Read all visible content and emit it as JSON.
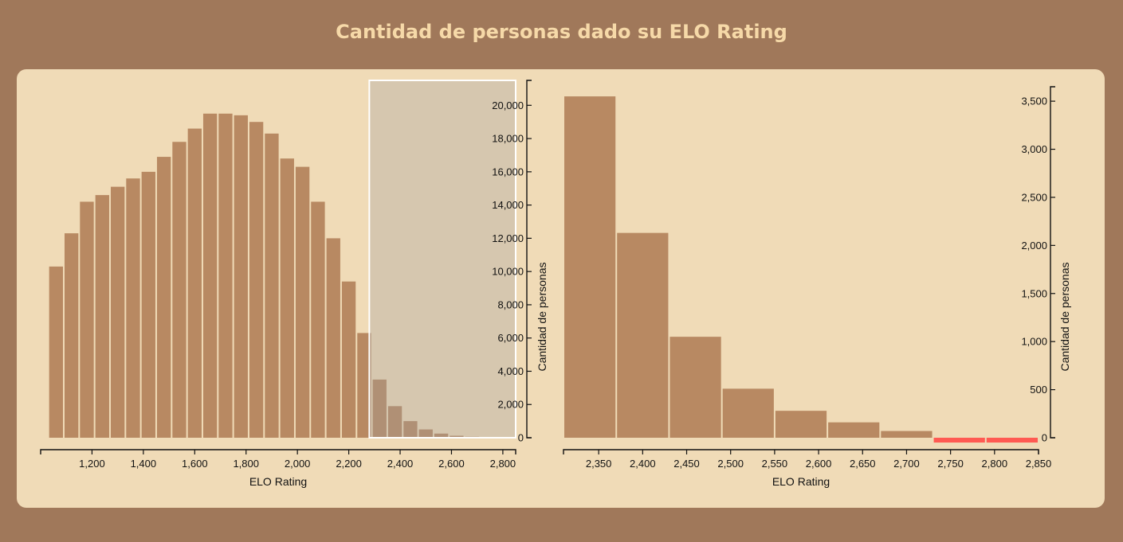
{
  "title": "Cantidad de personas dado su ELO Rating",
  "colors": {
    "background": "#a0785a",
    "panel": "#f0dbb7",
    "bar": "#b88962",
    "bar_highlight": "#ff5a52",
    "brush": "#a0a0a0",
    "title": "#f6d9a8"
  },
  "chart_data": [
    {
      "type": "bar",
      "chart": "histogram-overview",
      "xlabel": "ELO Rating",
      "ylabel": "Cantidad de personas",
      "x_ticks": [
        "1,200",
        "1,400",
        "1,600",
        "1,800",
        "2,000",
        "2,200",
        "2,400",
        "2,600",
        "2,800"
      ],
      "y_ticks": [
        "0",
        "2,000",
        "4,000",
        "6,000",
        "8,000",
        "10,000",
        "12,000",
        "14,000",
        "16,000",
        "18,000",
        "20,000"
      ],
      "xlim": [
        1000,
        2850
      ],
      "ylim": [
        0,
        21500
      ],
      "bin_width": 60,
      "bins_start": [
        1030,
        1090,
        1150,
        1210,
        1270,
        1330,
        1390,
        1450,
        1510,
        1570,
        1630,
        1690,
        1750,
        1810,
        1870,
        1930,
        1990,
        2050,
        2110,
        2170,
        2230,
        2290,
        2350,
        2410,
        2470,
        2530,
        2590,
        2650,
        2710,
        2770
      ],
      "values": [
        10300,
        12300,
        14200,
        14600,
        15100,
        15600,
        16000,
        16900,
        17800,
        18600,
        19500,
        19500,
        19400,
        19000,
        18300,
        16800,
        16300,
        14200,
        12000,
        9400,
        6300,
        3500,
        1900,
        1000,
        500,
        250,
        120,
        60,
        30,
        30
      ],
      "brush": {
        "range": [
          2280,
          2850
        ],
        "note": "selected range shown in zoom chart"
      }
    },
    {
      "type": "bar",
      "chart": "histogram-zoom",
      "xlabel": "ELO Rating",
      "ylabel": "Cantidad de personas",
      "x_ticks": [
        "2,350",
        "2,400",
        "2,450",
        "2,500",
        "2,550",
        "2,600",
        "2,650",
        "2,700",
        "2,750",
        "2,800",
        "2,850"
      ],
      "y_ticks": [
        "0",
        "500",
        "1,000",
        "1,500",
        "2,000",
        "2,500",
        "3,000",
        "3,500"
      ],
      "xlim": [
        2310,
        2850
      ],
      "ylim": [
        0,
        3650
      ],
      "bin_width": 60,
      "bins_start": [
        2310,
        2370,
        2430,
        2490,
        2550,
        2610,
        2670,
        2730,
        2790
      ],
      "values": [
        3550,
        2130,
        1050,
        510,
        280,
        160,
        70,
        -50,
        -50
      ],
      "highlighted": [
        false,
        false,
        false,
        false,
        false,
        false,
        false,
        true,
        true
      ]
    }
  ]
}
